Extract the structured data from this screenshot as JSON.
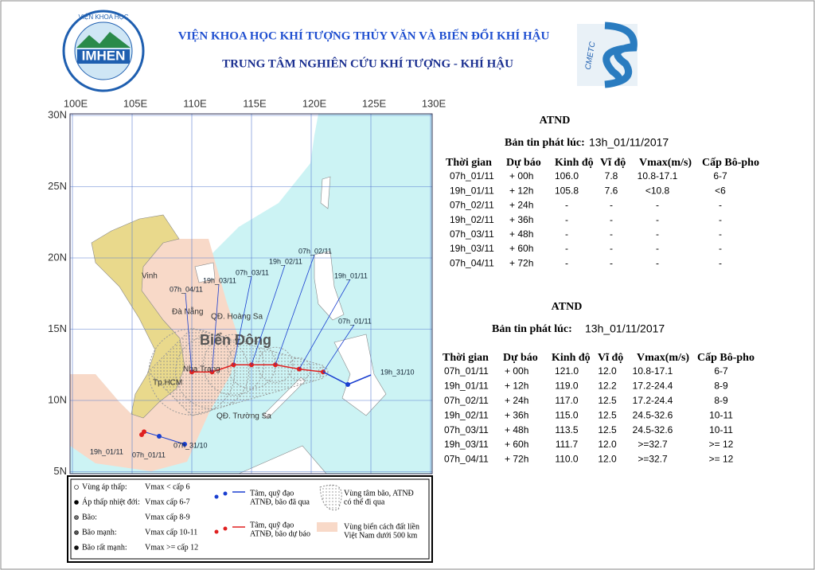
{
  "header": {
    "institute": "VIỆN KHOA HỌC KHÍ TƯỢNG THỦY VĂN VÀ BIẾN ĐỔI KHÍ HẬU",
    "center": "TRUNG TÂM NGHIÊN CỨU KHÍ TƯỢNG - KHÍ HẬU",
    "logo_left": "IMHEN",
    "logo_left_ring": "VIỆN KHOA HỌC",
    "logo_right": "CMETC"
  },
  "map": {
    "lon_labels": [
      "100E",
      "105E",
      "110E",
      "115E",
      "120E",
      "125E",
      "130E"
    ],
    "lat_labels": [
      "30N",
      "25N",
      "20N",
      "15N",
      "10N",
      "5N"
    ],
    "places": [
      "Vinh",
      "Đà Nẵng",
      "QĐ. Hoàng Sa",
      "Nha Trang",
      "Tp.HCM",
      "QĐ. Trường Sa"
    ],
    "sea_name": "Biển Đông",
    "track_labels": [
      "07h_02/11",
      "19h_02/11",
      "07h_03/11",
      "19h_03/11",
      "07h_04/11",
      "19h_01/11",
      "07h_01/11",
      "19h_31/10",
      "19h_01/11",
      "07h_01/11",
      "07h_31/10"
    ]
  },
  "legend": {
    "items": [
      {
        "label": "Vùng áp thấp:",
        "desc": "Vmax < cấp 6"
      },
      {
        "label": "Áp thấp nhiệt đới:",
        "desc": "Vmax cấp 6-7"
      },
      {
        "label": "Bão:",
        "desc": "Vmax cấp 8-9"
      },
      {
        "label": "Bão mạnh:",
        "desc": "Vmax cấp 10-11"
      },
      {
        "label": "Bão rất mạnh:",
        "desc": "Vmax >= cấp 12"
      }
    ],
    "past_track": [
      "Tâm, quỹ đạo",
      "ATNĐ, bão đã qua"
    ],
    "forecast_track": [
      "Tâm, quỹ đạo",
      "ATNĐ, bão dự báo"
    ],
    "cone": [
      "Vùng tâm bão, ATNĐ",
      "có thể đi qua"
    ],
    "buffer": [
      "Vùng biển cách đất liền",
      "Việt Nam dưới 500 km"
    ]
  },
  "bulletins": [
    {
      "title": "ATND",
      "issued_label": "Bản tin phát lúc:",
      "issued_time": "13h_01/11/2017",
      "columns": [
        "Thời gian",
        "Dự báo",
        "Kinh độ",
        "Vĩ độ",
        "Vmax(m/s)",
        "Cấp Bô-pho"
      ],
      "rows": [
        [
          "07h_01/11",
          "+ 00h",
          "106.0",
          "7.8",
          "10.8-17.1",
          "6-7"
        ],
        [
          "19h_01/11",
          "+ 12h",
          "105.8",
          "7.6",
          "<10.8",
          "<6"
        ],
        [
          "07h_02/11",
          "+ 24h",
          "-",
          "-",
          "-",
          "-"
        ],
        [
          "19h_02/11",
          "+ 36h",
          "-",
          "-",
          "-",
          "-"
        ],
        [
          "07h_03/11",
          "+ 48h",
          "-",
          "-",
          "-",
          "-"
        ],
        [
          "19h_03/11",
          "+ 60h",
          "-",
          "-",
          "-",
          "-"
        ],
        [
          "07h_04/11",
          "+ 72h",
          "-",
          "-",
          "-",
          "-"
        ]
      ]
    },
    {
      "title": "ATND",
      "issued_label": "Bản tin phát lúc:",
      "issued_time": "13h_01/11/2017",
      "columns": [
        "Thời gian",
        "Dự báo",
        "Kinh độ",
        "Vĩ độ",
        "Vmax(m/s)",
        "Cấp Bô-pho"
      ],
      "rows": [
        [
          "07h_01/11",
          "+ 00h",
          "121.0",
          "12.0",
          "10.8-17.1",
          "6-7"
        ],
        [
          "19h_01/11",
          "+ 12h",
          "119.0",
          "12.2",
          "17.2-24.4",
          "8-9"
        ],
        [
          "07h_02/11",
          "+ 24h",
          "117.0",
          "12.5",
          "17.2-24.4",
          "8-9"
        ],
        [
          "19h_02/11",
          "+ 36h",
          "115.0",
          "12.5",
          "24.5-32.6",
          "10-11"
        ],
        [
          "07h_03/11",
          "+ 48h",
          "113.5",
          "12.5",
          "24.5-32.6",
          "10-11"
        ],
        [
          "19h_03/11",
          "+ 60h",
          "111.7",
          "12.0",
          ">=32.7",
          ">= 12"
        ],
        [
          "07h_04/11",
          "+ 72h",
          "110.0",
          "12.0",
          ">=32.7",
          ">= 12"
        ]
      ]
    }
  ]
}
